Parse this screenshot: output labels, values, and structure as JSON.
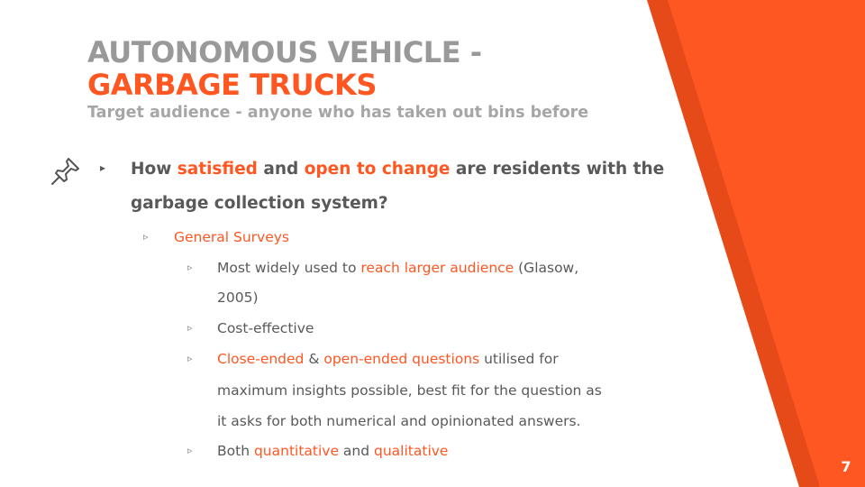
{
  "title": {
    "line1": "AUTONOMOUS VEHICLE -",
    "line2": "GARBAGE TRUCKS"
  },
  "subtitle": "Target audience - anyone who has taken out bins before",
  "question": {
    "part1": "How ",
    "hl1": "satisfied",
    "part2": " and ",
    "hl2": "open to change",
    "part3": " are residents with the",
    "line2": "garbage collection system?"
  },
  "method": "General Surveys",
  "points": {
    "p1_a": "Most widely used to  ",
    "p1_hl": "reach larger audience",
    "p1_b": " (Glasow,",
    "p1_line2": "2005)",
    "p2": "Cost-effective",
    "p3_hl1": "Close-ended",
    "p3_a": " & ",
    "p3_hl2": "open-ended questions",
    "p3_b": " utilised for",
    "p3_line2": "maximum insights possible, best fit for the question as",
    "p3_line3": "it asks for both numerical and opinionated answers.",
    "p4_a": "Both ",
    "p4_hl1": "quantitative",
    "p4_b": " and ",
    "p4_hl2": "qualitative"
  },
  "markers": {
    "main": "▸",
    "sub": "▹"
  },
  "page_number": "7",
  "icons": {
    "pin": "pushpin-icon"
  },
  "colors": {
    "accent": "#ff5722",
    "accent_dark": "#e64a19",
    "title_gray": "#999999",
    "text": "#595959"
  }
}
